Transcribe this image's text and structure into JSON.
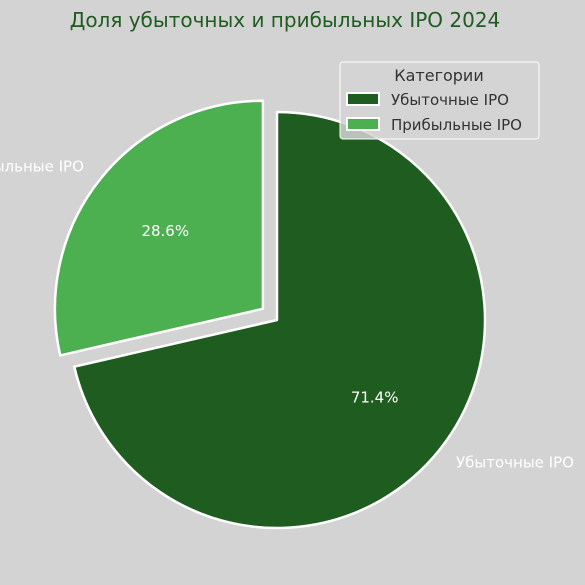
{
  "chart_data": {
    "type": "pie",
    "title": "Доля убыточных и прибыльных IPO 2024",
    "categories": [
      "Убыточные IPO",
      "Прибыльные IPO"
    ],
    "values": [
      71.4,
      28.6
    ],
    "percent_labels": [
      "71.4%",
      "28.6%"
    ],
    "colors": [
      "#1e5c1f",
      "#4caf50"
    ],
    "exploded": [
      false,
      true
    ],
    "start_angle_deg": 90,
    "direction": "clockwise",
    "legend": {
      "title": "Категории",
      "entries": [
        "Убыточные IPO",
        "Прибыльные IPO"
      ],
      "position": "top-right"
    }
  },
  "colors": {
    "background": "#d3d3d3",
    "title": "#1e5c1f",
    "slice_edge": "#ffffff",
    "label_text": "#ffffff",
    "legend_text": "#333333",
    "legend_bg": "#d3d3d3",
    "legend_border": "#ffffff"
  }
}
